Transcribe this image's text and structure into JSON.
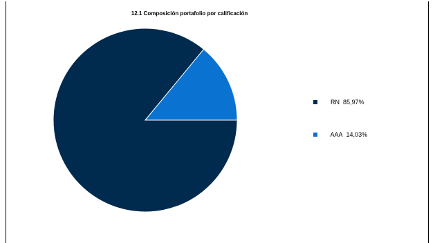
{
  "chart_data": {
    "type": "pie",
    "title": "12.1 Composición portafolio por calificación",
    "categories": [
      "RN",
      "AAA"
    ],
    "values": [
      85.97,
      14.03
    ],
    "value_labels": [
      "85,97%",
      "14,03%"
    ],
    "colors": [
      "#002a4e",
      "#0a73d1"
    ],
    "legend": "right"
  }
}
